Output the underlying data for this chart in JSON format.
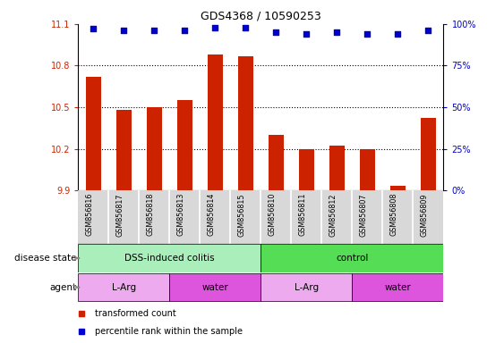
{
  "title": "GDS4368 / 10590253",
  "samples": [
    "GSM856816",
    "GSM856817",
    "GSM856818",
    "GSM856813",
    "GSM856814",
    "GSM856815",
    "GSM856810",
    "GSM856811",
    "GSM856812",
    "GSM856807",
    "GSM856808",
    "GSM856809"
  ],
  "red_values": [
    10.72,
    10.48,
    10.5,
    10.55,
    10.88,
    10.87,
    10.3,
    10.2,
    10.22,
    10.2,
    9.93,
    10.42
  ],
  "blue_values": [
    97,
    96,
    96,
    96,
    98,
    98,
    95,
    94,
    95,
    94,
    94,
    96
  ],
  "ylim_left": [
    9.9,
    11.1
  ],
  "ylim_right": [
    0,
    100
  ],
  "yticks_left": [
    9.9,
    10.2,
    10.5,
    10.8,
    11.1
  ],
  "yticks_right": [
    0,
    25,
    50,
    75,
    100
  ],
  "ytick_labels_right": [
    "0%",
    "25%",
    "50%",
    "75%",
    "100%"
  ],
  "bar_color": "#cc2200",
  "dot_color": "#0000cc",
  "disease_state_groups": [
    {
      "label": "DSS-induced colitis",
      "start": 0,
      "end": 5,
      "color": "#aaeebb"
    },
    {
      "label": "control",
      "start": 6,
      "end": 11,
      "color": "#55dd55"
    }
  ],
  "agent_groups": [
    {
      "label": "L-Arg",
      "start": 0,
      "end": 2,
      "color": "#eeaaee"
    },
    {
      "label": "water",
      "start": 3,
      "end": 5,
      "color": "#dd55dd"
    },
    {
      "label": "L-Arg",
      "start": 6,
      "end": 8,
      "color": "#eeaaee"
    },
    {
      "label": "water",
      "start": 9,
      "end": 11,
      "color": "#dd55dd"
    }
  ],
  "legend_red_label": "transformed count",
  "legend_blue_label": "percentile rank within the sample",
  "disease_label": "disease state",
  "agent_label": "agent",
  "sample_bg_color": "#d8d8d8",
  "sample_sep_color": "#aaaaaa"
}
